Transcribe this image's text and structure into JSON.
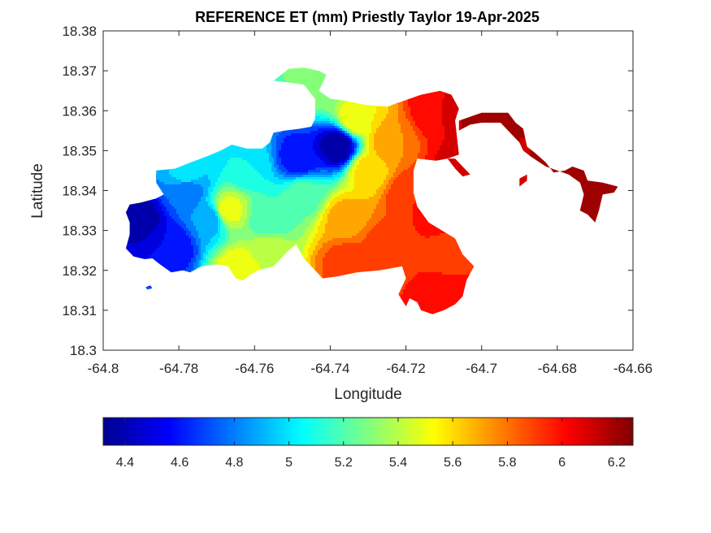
{
  "chart_data": {
    "type": "heatmap",
    "title": "REFERENCE ET (mm) Priestly Taylor 19-Apr-2025",
    "xlabel": "Longitude",
    "ylabel": "Latitude",
    "xlim": [
      -64.8,
      -64.66
    ],
    "ylim": [
      18.3,
      18.38
    ],
    "x_ticks": [
      "-64.8",
      "-64.78",
      "-64.76",
      "-64.74",
      "-64.72",
      "-64.7",
      "-64.68",
      "-64.66"
    ],
    "y_ticks": [
      "18.3",
      "18.31",
      "18.32",
      "18.33",
      "18.34",
      "18.35",
      "18.36",
      "18.37",
      "18.38"
    ],
    "grid": false,
    "colormap": "jet",
    "colorbar": {
      "location": "bottom",
      "range": [
        4.32,
        6.26
      ],
      "ticks": [
        "4.4",
        "4.6",
        "4.8",
        "5",
        "5.2",
        "5.4",
        "5.6",
        "5.8",
        "6",
        "6.2"
      ]
    },
    "centers": [
      {
        "lon": -64.738,
        "lat": 18.351,
        "et": 4.35
      },
      {
        "lon": -64.748,
        "lat": 18.348,
        "et": 4.55
      },
      {
        "lon": -64.79,
        "lat": 18.333,
        "et": 4.4
      },
      {
        "lon": -64.782,
        "lat": 18.326,
        "et": 4.55
      },
      {
        "lon": -64.778,
        "lat": 18.34,
        "et": 4.75
      },
      {
        "lon": -64.772,
        "lat": 18.333,
        "et": 4.85
      },
      {
        "lon": -64.778,
        "lat": 18.344,
        "et": 5.0
      },
      {
        "lon": -64.762,
        "lat": 18.346,
        "et": 5.05
      },
      {
        "lon": -64.756,
        "lat": 18.333,
        "et": 5.15
      },
      {
        "lon": -64.747,
        "lat": 18.339,
        "et": 5.2
      },
      {
        "lon": -64.742,
        "lat": 18.366,
        "et": 5.3
      },
      {
        "lon": -64.756,
        "lat": 18.325,
        "et": 5.4
      },
      {
        "lon": -64.767,
        "lat": 18.335,
        "et": 5.5
      },
      {
        "lon": -64.764,
        "lat": 18.32,
        "et": 5.55
      },
      {
        "lon": -64.733,
        "lat": 18.358,
        "et": 5.55
      },
      {
        "lon": -64.736,
        "lat": 18.333,
        "et": 5.7
      },
      {
        "lon": -64.73,
        "lat": 18.345,
        "et": 5.6
      },
      {
        "lon": -64.724,
        "lat": 18.352,
        "et": 5.75
      },
      {
        "lon": -64.736,
        "lat": 18.322,
        "et": 5.9
      },
      {
        "lon": -64.726,
        "lat": 18.326,
        "et": 5.9
      },
      {
        "lon": -64.719,
        "lat": 18.339,
        "et": 5.95
      },
      {
        "lon": -64.716,
        "lat": 18.322,
        "et": 5.95
      },
      {
        "lon": -64.712,
        "lat": 18.36,
        "et": 6.05
      },
      {
        "lon": -64.711,
        "lat": 18.334,
        "et": 6.0
      },
      {
        "lon": -64.708,
        "lat": 18.325,
        "et": 5.9
      },
      {
        "lon": -64.707,
        "lat": 18.345,
        "et": 6.1
      },
      {
        "lon": -64.71,
        "lat": 18.312,
        "et": 6.05
      },
      {
        "lon": -64.7,
        "lat": 18.358,
        "et": 6.2
      },
      {
        "lon": -64.684,
        "lat": 18.349,
        "et": 6.15
      },
      {
        "lon": -64.669,
        "lat": 18.34,
        "et": 6.25
      },
      {
        "lon": -64.676,
        "lat": 18.344,
        "et": 6.2
      },
      {
        "lon": -64.701,
        "lat": 18.341,
        "et": 6.1
      }
    ],
    "outline_main": [
      [
        -64.755,
        18.3675
      ],
      [
        -64.751,
        18.3705
      ],
      [
        -64.747,
        18.3708
      ],
      [
        -64.743,
        18.37
      ],
      [
        -64.741,
        18.369
      ],
      [
        -64.742,
        18.367
      ],
      [
        -64.743,
        18.365
      ],
      [
        -64.74,
        18.363
      ],
      [
        -64.736,
        18.3625
      ],
      [
        -64.731,
        18.3615
      ],
      [
        -64.725,
        18.361
      ],
      [
        -64.719,
        18.363
      ],
      [
        -64.716,
        18.364
      ],
      [
        -64.711,
        18.365
      ],
      [
        -64.708,
        18.364
      ],
      [
        -64.706,
        18.3605
      ],
      [
        -64.707,
        18.3575
      ],
      [
        -64.706,
        18.349
      ],
      [
        -64.709,
        18.348
      ],
      [
        -64.712,
        18.3475
      ],
      [
        -64.717,
        18.348
      ],
      [
        -64.718,
        18.345
      ],
      [
        -64.718,
        18.3395
      ],
      [
        -64.717,
        18.336
      ],
      [
        -64.714,
        18.332
      ],
      [
        -64.707,
        18.328
      ],
      [
        -64.705,
        18.324
      ],
      [
        -64.702,
        18.321
      ],
      [
        -64.704,
        18.3175
      ],
      [
        -64.705,
        18.3135
      ],
      [
        -64.707,
        18.3115
      ],
      [
        -64.71,
        18.31
      ],
      [
        -64.713,
        18.309
      ],
      [
        -64.716,
        18.31
      ],
      [
        -64.717,
        18.312
      ],
      [
        -64.719,
        18.313
      ],
      [
        -64.72,
        18.311
      ],
      [
        -64.722,
        18.314
      ],
      [
        -64.72,
        18.318
      ],
      [
        -64.721,
        18.321
      ],
      [
        -64.727,
        18.32
      ],
      [
        -64.733,
        18.3195
      ],
      [
        -64.738,
        18.3185
      ],
      [
        -64.742,
        18.318
      ],
      [
        -64.745,
        18.321
      ],
      [
        -64.747,
        18.323
      ],
      [
        -64.749,
        18.3265
      ],
      [
        -64.751,
        18.325
      ],
      [
        -64.755,
        18.321
      ],
      [
        -64.759,
        18.32
      ],
      [
        -64.761,
        18.319
      ],
      [
        -64.763,
        18.3175
      ],
      [
        -64.765,
        18.318
      ],
      [
        -64.767,
        18.321
      ],
      [
        -64.77,
        18.3215
      ],
      [
        -64.774,
        18.321
      ],
      [
        -64.777,
        18.3195
      ],
      [
        -64.779,
        18.32
      ],
      [
        -64.782,
        18.3195
      ],
      [
        -64.785,
        18.3215
      ],
      [
        -64.787,
        18.323
      ],
      [
        -64.789,
        18.3228
      ],
      [
        -64.792,
        18.3235
      ],
      [
        -64.794,
        18.3255
      ],
      [
        -64.793,
        18.329
      ],
      [
        -64.793,
        18.332
      ],
      [
        -64.794,
        18.3345
      ],
      [
        -64.793,
        18.3365
      ],
      [
        -64.79,
        18.337
      ],
      [
        -64.786,
        18.338
      ],
      [
        -64.784,
        18.339
      ],
      [
        -64.786,
        18.342
      ],
      [
        -64.786,
        18.345
      ],
      [
        -64.781,
        18.3455
      ],
      [
        -64.777,
        18.347
      ],
      [
        -64.772,
        18.3488
      ],
      [
        -64.769,
        18.35
      ],
      [
        -64.766,
        18.3515
      ],
      [
        -64.762,
        18.3505
      ],
      [
        -64.758,
        18.3505
      ],
      [
        -64.756,
        18.352
      ],
      [
        -64.755,
        18.3545
      ],
      [
        -64.752,
        18.355
      ],
      [
        -64.748,
        18.3555
      ],
      [
        -64.745,
        18.356
      ],
      [
        -64.744,
        18.358
      ],
      [
        -64.744,
        18.363
      ],
      [
        -64.747,
        18.3665
      ],
      [
        -64.752,
        18.3672
      ]
    ],
    "outline_east": [
      [
        -64.706,
        18.3575
      ],
      [
        -64.7,
        18.3595
      ],
      [
        -64.693,
        18.3595
      ],
      [
        -64.691,
        18.357
      ],
      [
        -64.689,
        18.3555
      ],
      [
        -64.688,
        18.351
      ],
      [
        -64.686,
        18.3495
      ],
      [
        -64.683,
        18.347
      ],
      [
        -64.681,
        18.3445
      ],
      [
        -64.678,
        18.345
      ],
      [
        -64.676,
        18.346
      ],
      [
        -64.673,
        18.345
      ],
      [
        -64.672,
        18.3425
      ],
      [
        -64.668,
        18.342
      ],
      [
        -64.664,
        18.341
      ],
      [
        -64.665,
        18.3395
      ],
      [
        -64.668,
        18.339
      ],
      [
        -64.669,
        18.335
      ],
      [
        -64.67,
        18.332
      ],
      [
        -64.672,
        18.334
      ],
      [
        -64.674,
        18.335
      ],
      [
        -64.673,
        18.339
      ],
      [
        -64.674,
        18.342
      ],
      [
        -64.677,
        18.344
      ],
      [
        -64.68,
        18.345
      ],
      [
        -64.683,
        18.346
      ],
      [
        -64.687,
        18.3485
      ],
      [
        -64.689,
        18.35
      ],
      [
        -64.69,
        18.352
      ],
      [
        -64.692,
        18.354
      ],
      [
        -64.695,
        18.357
      ],
      [
        -64.7,
        18.357
      ],
      [
        -64.703,
        18.3565
      ],
      [
        -64.706,
        18.355
      ]
    ],
    "outline_spur": [
      [
        -64.709,
        18.348
      ],
      [
        -64.707,
        18.3455
      ],
      [
        -64.705,
        18.3435
      ],
      [
        -64.703,
        18.344
      ],
      [
        -64.705,
        18.346
      ],
      [
        -64.707,
        18.348
      ]
    ],
    "outline_islet_1": [
      [
        -64.69,
        18.341
      ],
      [
        -64.688,
        18.3425
      ],
      [
        -64.688,
        18.344
      ],
      [
        -64.69,
        18.343
      ]
    ],
    "outline_islet_2": [
      [
        -64.7888,
        18.3158
      ],
      [
        -64.7875,
        18.3162
      ],
      [
        -64.787,
        18.3155
      ],
      [
        -64.7884,
        18.3152
      ]
    ]
  }
}
